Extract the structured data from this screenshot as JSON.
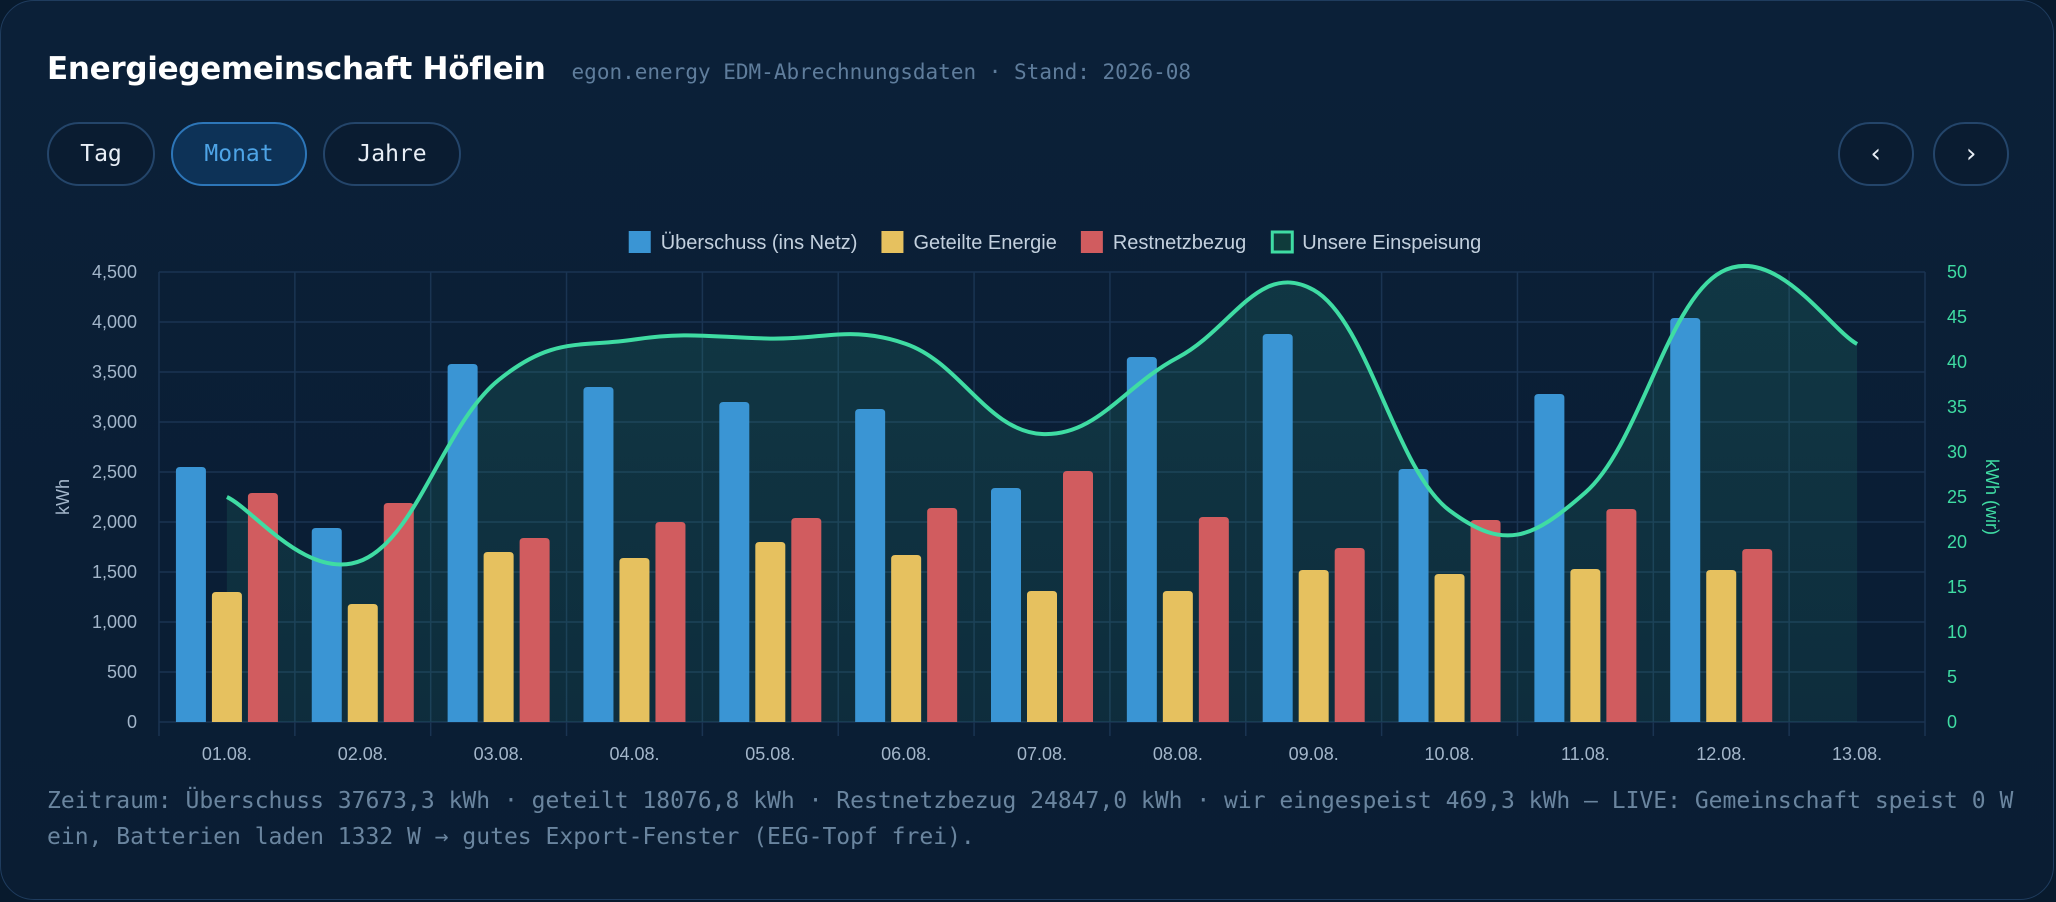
{
  "header": {
    "title": "Energiegemeinschaft Höflein",
    "subtitle": "egon.energy EDM-Abrechnungsdaten · Stand: 2026-08"
  },
  "controls": {
    "tabs": [
      {
        "label": "Tag",
        "active": false
      },
      {
        "label": "Monat",
        "active": true
      },
      {
        "label": "Jahre",
        "active": false
      }
    ],
    "prev_label": "‹",
    "next_label": "›"
  },
  "footer": {
    "summary": "Zeitraum: Überschuss 37673,3 kWh · geteilt 18076,8 kWh · Restnetzbezug 24847,0 kWh · wir eingespeist 469,3 kWh — LIVE: Gemeinschaft speist 0 W ein, Batterien laden 1332 W → gutes Export-Fenster (EEG-Topf frei)."
  },
  "chart_data": {
    "type": "bar",
    "categories": [
      "01.08.",
      "02.08.",
      "03.08.",
      "04.08.",
      "05.08.",
      "06.08.",
      "07.08.",
      "08.08.",
      "09.08.",
      "10.08.",
      "11.08.",
      "12.08.",
      "13.08."
    ],
    "series": [
      {
        "name": "Überschuss (ins Netz)",
        "type": "bar",
        "axis": "left",
        "color": "#3a95d4",
        "values": [
          2550,
          1940,
          3580,
          3350,
          3200,
          3130,
          2340,
          3650,
          3880,
          2530,
          3280,
          4040,
          null
        ]
      },
      {
        "name": "Geteilte Energie",
        "type": "bar",
        "axis": "left",
        "color": "#e6c15f",
        "values": [
          1300,
          1180,
          1700,
          1640,
          1800,
          1670,
          1310,
          1310,
          1520,
          1480,
          1530,
          1520,
          null
        ]
      },
      {
        "name": "Restnetzbezug",
        "type": "bar",
        "axis": "left",
        "color": "#d15c5f",
        "values": [
          2290,
          2190,
          1840,
          2000,
          2040,
          2140,
          2510,
          2050,
          1740,
          2020,
          2130,
          1730,
          null
        ]
      },
      {
        "name": "Unsere Einspeisung",
        "type": "line",
        "axis": "right",
        "color": "#3fdca3",
        "values": [
          25,
          18,
          38,
          42.5,
          42.6,
          42,
          32,
          40.5,
          48,
          23.5,
          25.5,
          50,
          42
        ]
      }
    ],
    "ylabel": "kWh",
    "ylabel_right": "kWh (wir)",
    "ylim": [
      0,
      4500
    ],
    "ylim_right": [
      0,
      50
    ],
    "yticks": [
      "0",
      "500",
      "1,000",
      "1,500",
      "2,000",
      "2,500",
      "3,000",
      "3,500",
      "4,000",
      "4,500"
    ],
    "yticks_right": [
      "0",
      "5",
      "10",
      "15",
      "20",
      "25",
      "30",
      "35",
      "40",
      "45",
      "50"
    ],
    "legend": "top-center",
    "grid": true
  }
}
